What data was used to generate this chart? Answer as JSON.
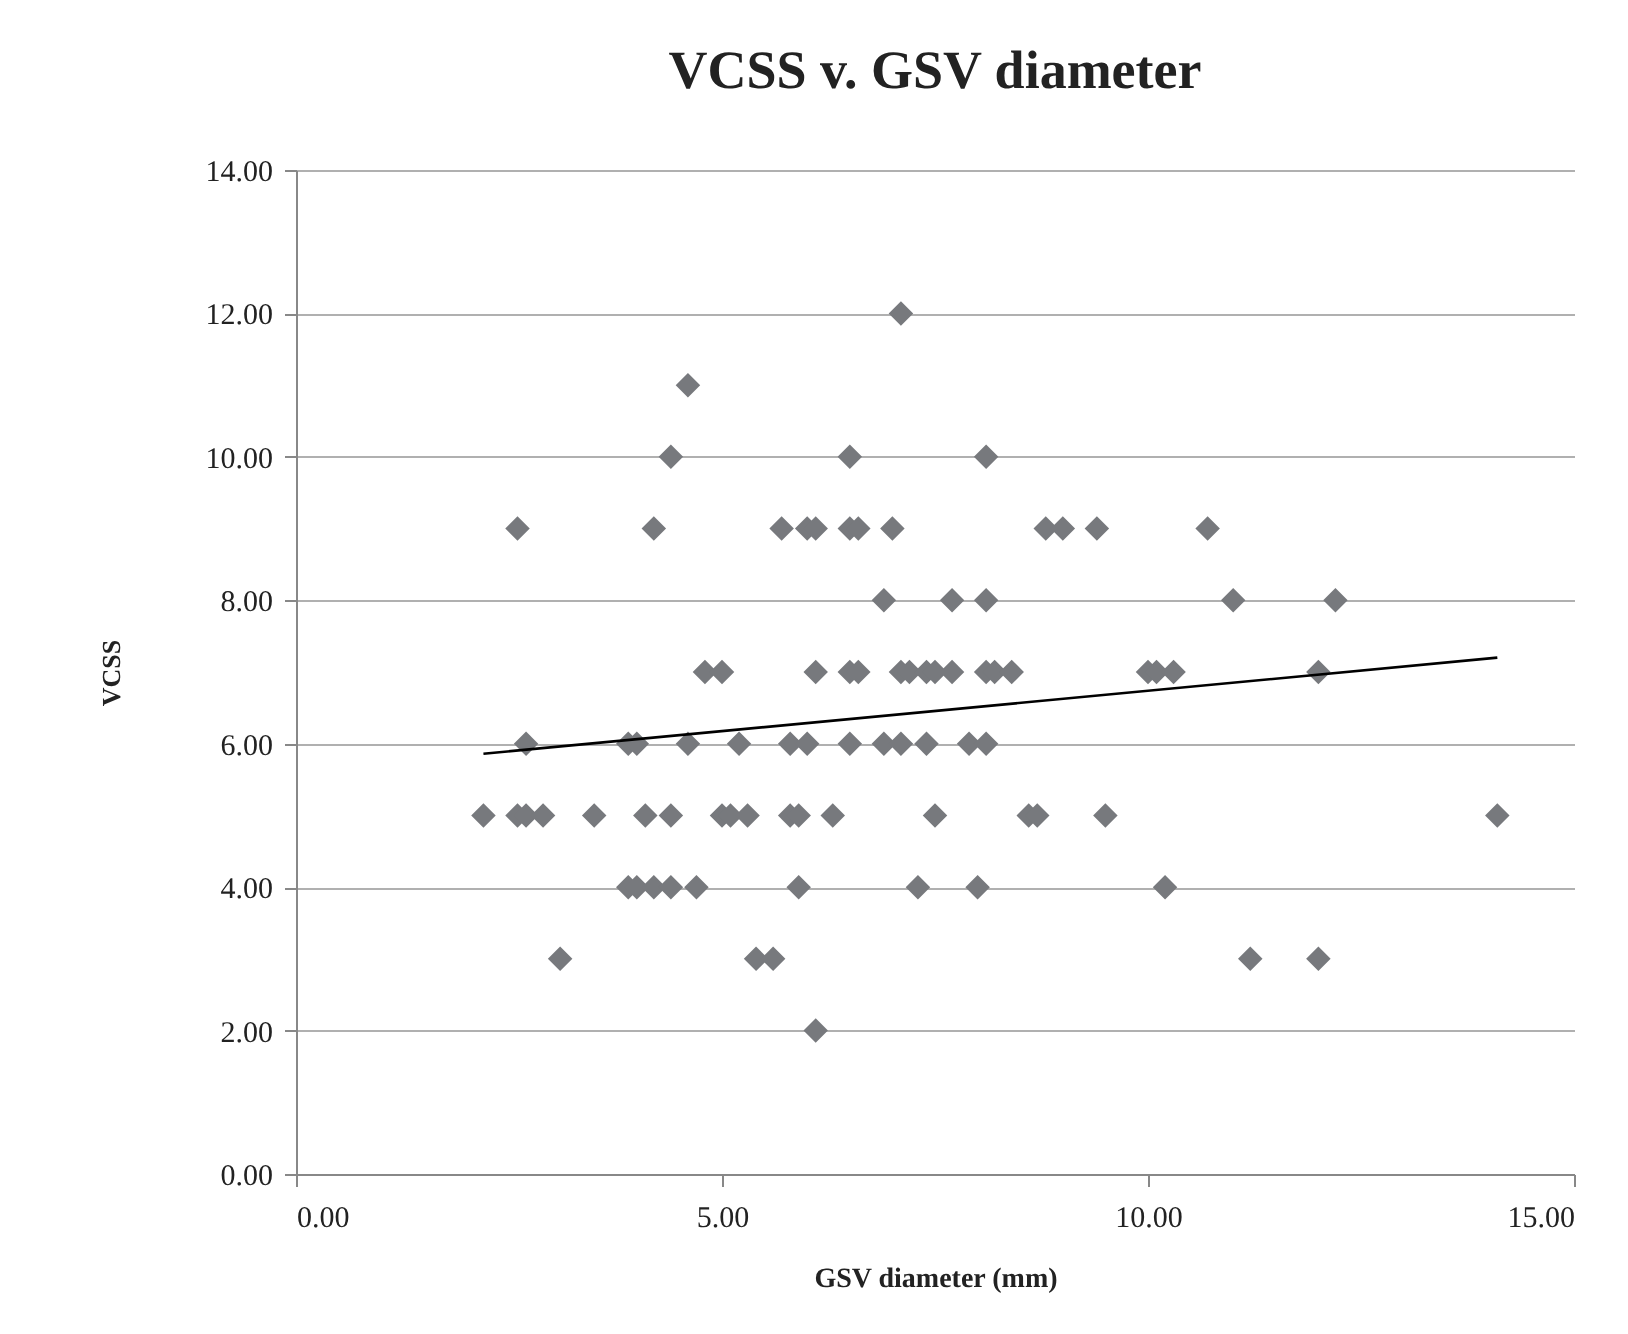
{
  "chart_data": {
    "type": "scatter",
    "title": "VCSS v. GSV diameter",
    "xlabel": "GSV diameter (mm)",
    "ylabel": "VCSS",
    "xlim": [
      0,
      15
    ],
    "xticks": [
      {
        "value": 0,
        "label": "0.00"
      },
      {
        "value": 5,
        "label": "5.00"
      },
      {
        "value": 10,
        "label": "10.00"
      },
      {
        "value": 15,
        "label": "15.00"
      }
    ],
    "ylim": [
      0,
      14
    ],
    "yticks": [
      {
        "value": 0,
        "label": "0.00"
      },
      {
        "value": 2,
        "label": "2.00"
      },
      {
        "value": 4,
        "label": "4.00"
      },
      {
        "value": 6,
        "label": "6.00"
      },
      {
        "value": 8,
        "label": "8.00"
      },
      {
        "value": 10,
        "label": "10.00"
      },
      {
        "value": 12,
        "label": "12.00"
      },
      {
        "value": 14,
        "label": "14.00"
      }
    ],
    "grid": "y",
    "marker": "diamond",
    "series": [
      {
        "color": "#77797d",
        "x": [
          4.6,
          4.4,
          6.5,
          8.1,
          2.6,
          4.2,
          5.7,
          6.0,
          6.1,
          6.5,
          6.6,
          7.0,
          8.8,
          9.0,
          9.4,
          10.7,
          6.9,
          7.7,
          8.1,
          11.0,
          12.2,
          4.8,
          5.0,
          6.1,
          6.5,
          6.6,
          7.1,
          7.2,
          7.4,
          7.5,
          7.7,
          8.1,
          8.2,
          8.4,
          10.0,
          10.1,
          10.3,
          12.0,
          2.7,
          3.9,
          4.0,
          4.6,
          5.2,
          5.8,
          6.0,
          6.5,
          6.9,
          7.1,
          7.4,
          7.9,
          8.1,
          2.2,
          2.6,
          2.7,
          2.9,
          3.5,
          4.1,
          4.4,
          5.0,
          5.1,
          5.3,
          5.8,
          5.9,
          6.3,
          7.5,
          8.6,
          8.7,
          9.5,
          14.1,
          3.9,
          4.0,
          4.2,
          4.4,
          4.7,
          5.9,
          7.3,
          8.0,
          10.2,
          3.1,
          5.4,
          5.6,
          11.2,
          12.0,
          6.1,
          7.1
        ],
        "values": [
          11,
          10,
          10,
          10,
          9,
          9,
          9,
          9,
          9,
          9,
          9,
          9,
          9,
          9,
          9,
          9,
          8,
          8,
          8,
          8,
          8,
          7,
          7,
          7,
          7,
          7,
          7,
          7,
          7,
          7,
          7,
          7,
          7,
          7,
          7,
          7,
          7,
          7,
          6,
          6,
          6,
          6,
          6,
          6,
          6,
          6,
          6,
          6,
          6,
          6,
          6,
          5,
          5,
          5,
          5,
          5,
          5,
          5,
          5,
          5,
          5,
          5,
          5,
          5,
          5,
          5,
          5,
          5,
          5,
          4,
          4,
          4,
          4,
          4,
          4,
          4,
          4,
          4,
          3,
          3,
          3,
          3,
          3,
          2,
          12
        ]
      },
      {
        "type": "line",
        "color": "#000000",
        "marker": "none",
        "x": [
          2.2,
          14.1
        ],
        "values": [
          5.86,
          7.2
        ]
      }
    ]
  }
}
